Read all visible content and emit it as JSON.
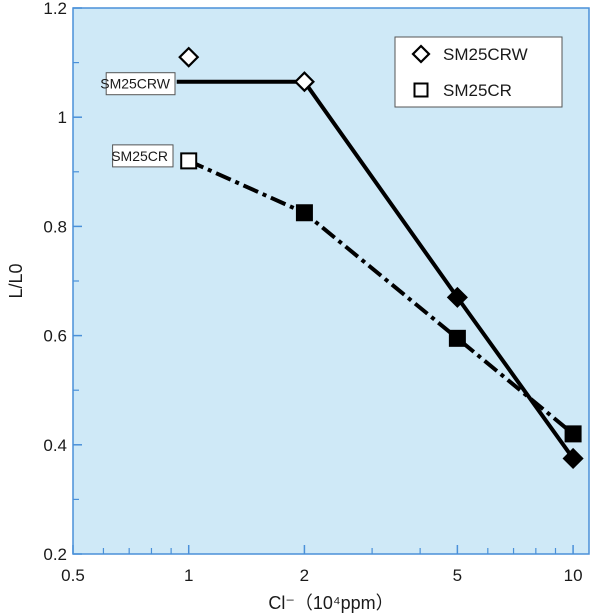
{
  "chart_data": {
    "type": "line",
    "xlabel": "Cl⁻（10⁴ppm）",
    "ylabel": "L/L0",
    "x_scale": "log",
    "xlim": [
      0.5,
      11
    ],
    "ylim": [
      0.2,
      1.2
    ],
    "x_ticks": [
      {
        "value": 0.5,
        "label": "0.5"
      },
      {
        "value": 1,
        "label": "1"
      },
      {
        "value": 2,
        "label": "2"
      },
      {
        "value": 5,
        "label": "5"
      },
      {
        "value": 10,
        "label": "10"
      }
    ],
    "y_ticks": [
      {
        "value": 0.2,
        "label": "0.2"
      },
      {
        "value": 0.4,
        "label": "0.4"
      },
      {
        "value": 0.6,
        "label": "0.6"
      },
      {
        "value": 0.8,
        "label": "0.8"
      },
      {
        "value": 1.0,
        "label": "1"
      },
      {
        "value": 1.2,
        "label": "1.2"
      }
    ],
    "grid": false,
    "legend_position": "top-right",
    "background_color": "#cfe9f7",
    "series": [
      {
        "name": "SM25CRW",
        "marker": "diamond",
        "line_style": "solid",
        "initial_marker_y": 1.11,
        "x": [
          1,
          2,
          5,
          10
        ],
        "y": [
          1.065,
          1.065,
          0.67,
          0.375
        ]
      },
      {
        "name": "SM25CR",
        "marker": "square",
        "line_style": "dash-dot",
        "x": [
          1,
          2,
          5,
          10
        ],
        "y": [
          0.92,
          0.825,
          0.595,
          0.42
        ]
      }
    ],
    "annotations": [
      {
        "text": "SM25CRW",
        "series": "SM25CRW"
      },
      {
        "text": "SM25CR",
        "series": "SM25CR"
      }
    ]
  }
}
